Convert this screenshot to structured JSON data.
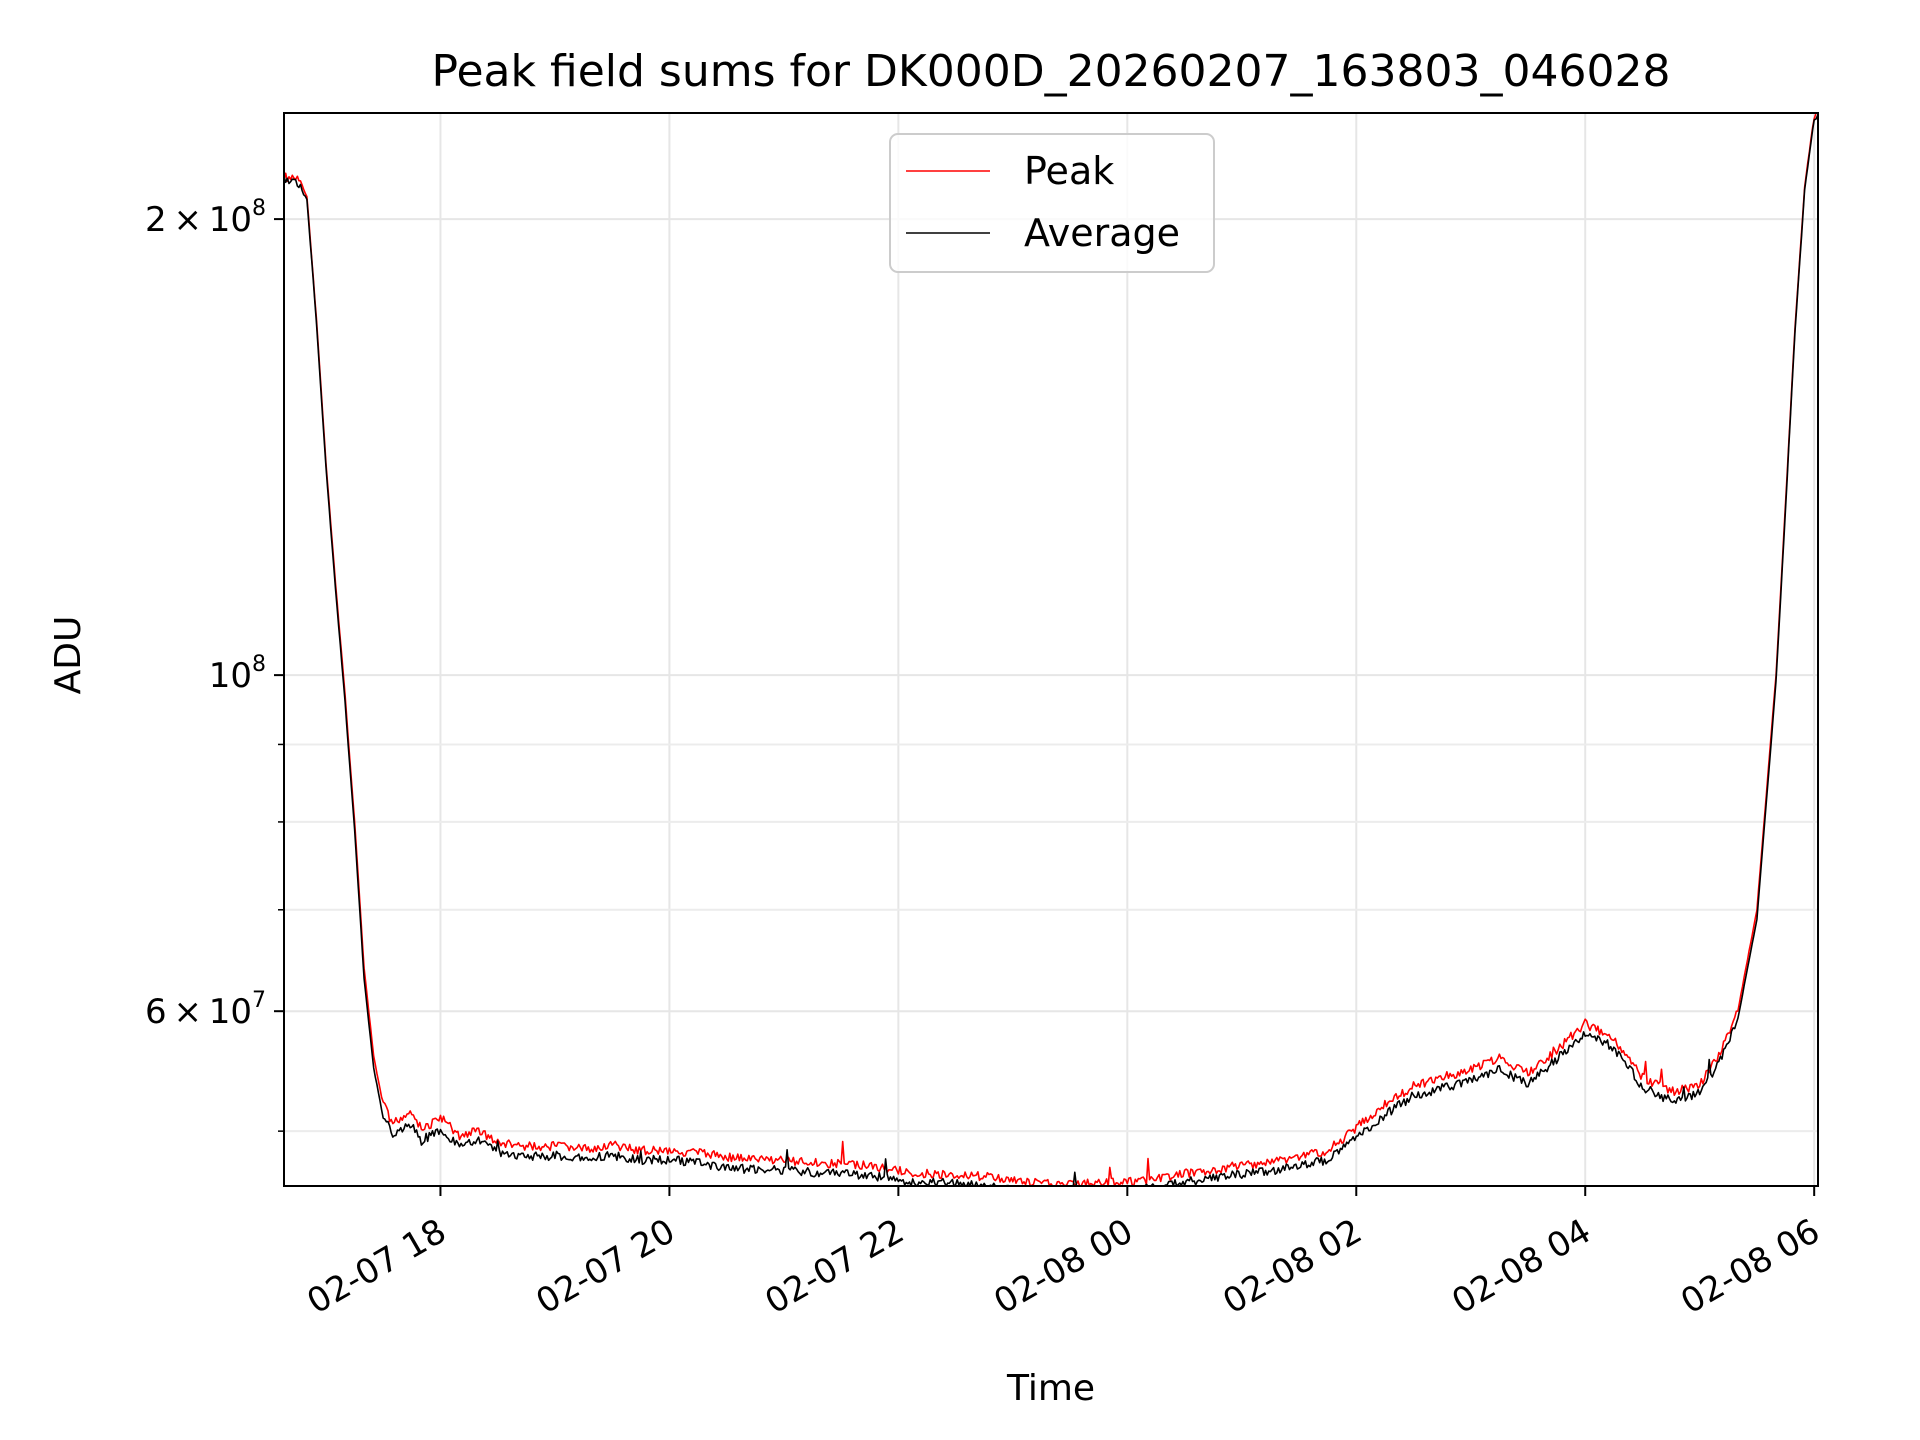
{
  "chart_data": {
    "type": "line",
    "title": "Peak field sums for DK000D_20260207_163803_046028",
    "xlabel": "Time",
    "ylabel": "ADU",
    "yscale": "log",
    "xlim": [
      "2026-02-07 16:38",
      "2026-02-08 06:02"
    ],
    "ylim": [
      46000000,
      235000000
    ],
    "grid": true,
    "legend": {
      "placement": "upper center"
    },
    "x_ticks": [
      {
        "value": "2026-02-07 18:00",
        "label": "02-07 18"
      },
      {
        "value": "2026-02-07 20:00",
        "label": "02-07 20"
      },
      {
        "value": "2026-02-07 22:00",
        "label": "02-07 22"
      },
      {
        "value": "2026-02-08 00:00",
        "label": "02-08 00"
      },
      {
        "value": "2026-02-08 02:00",
        "label": "02-08 02"
      },
      {
        "value": "2026-02-08 04:00",
        "label": "02-08 04"
      },
      {
        "value": "2026-02-08 06:00",
        "label": "02-08 06"
      }
    ],
    "y_major_ticks": [
      {
        "value": 200000000,
        "mant": "2",
        "base": "10",
        "exp": "8"
      },
      {
        "value": 100000000,
        "mant": "",
        "base": "10",
        "exp": "8"
      },
      {
        "value": 60000000,
        "mant": "6",
        "base": "10",
        "exp": "7"
      }
    ],
    "y_minor_ticks": [
      50000000,
      70000000,
      80000000,
      90000000,
      300000000
    ],
    "series": [
      {
        "name": "Peak",
        "color": "#ff0000",
        "x": [
          "2026-02-07 16:38",
          "2026-02-07 16:45",
          "2026-02-07 16:50",
          "2026-02-07 16:55",
          "2026-02-07 17:00",
          "2026-02-07 17:05",
          "2026-02-07 17:10",
          "2026-02-07 17:15",
          "2026-02-07 17:20",
          "2026-02-07 17:25",
          "2026-02-07 17:30",
          "2026-02-07 17:35",
          "2026-02-07 17:40",
          "2026-02-07 17:45",
          "2026-02-07 17:50",
          "2026-02-07 18:00",
          "2026-02-07 18:10",
          "2026-02-07 18:20",
          "2026-02-07 18:30",
          "2026-02-07 18:45",
          "2026-02-07 19:00",
          "2026-02-07 19:15",
          "2026-02-07 19:30",
          "2026-02-07 19:45",
          "2026-02-07 20:00",
          "2026-02-07 20:15",
          "2026-02-07 20:30",
          "2026-02-07 20:45",
          "2026-02-07 21:00",
          "2026-02-07 21:15",
          "2026-02-07 21:30",
          "2026-02-07 21:45",
          "2026-02-07 22:00",
          "2026-02-07 22:15",
          "2026-02-07 22:30",
          "2026-02-07 22:45",
          "2026-02-07 23:00",
          "2026-02-07 23:15",
          "2026-02-07 23:30",
          "2026-02-07 23:45",
          "2026-02-08 00:00",
          "2026-02-08 00:15",
          "2026-02-08 00:30",
          "2026-02-08 00:45",
          "2026-02-08 01:00",
          "2026-02-08 01:15",
          "2026-02-08 01:30",
          "2026-02-08 01:45",
          "2026-02-08 02:00",
          "2026-02-08 02:15",
          "2026-02-08 02:30",
          "2026-02-08 02:45",
          "2026-02-08 03:00",
          "2026-02-08 03:15",
          "2026-02-08 03:30",
          "2026-02-08 03:45",
          "2026-02-08 04:00",
          "2026-02-08 04:15",
          "2026-02-08 04:30",
          "2026-02-08 04:45",
          "2026-02-08 05:00",
          "2026-02-08 05:10",
          "2026-02-08 05:20",
          "2026-02-08 05:30",
          "2026-02-08 05:40",
          "2026-02-08 05:45",
          "2026-02-08 05:50",
          "2026-02-08 05:55",
          "2026-02-08 06:00",
          "2026-02-08 06:02"
        ],
        "y": [
          213000000,
          212000000,
          207000000,
          172000000,
          138000000,
          115000000,
          97000000,
          80000000,
          64000000,
          56000000,
          52000000,
          50500000,
          51000000,
          51500000,
          50000000,
          51000000,
          49500000,
          50000000,
          49000000,
          48800000,
          48800000,
          48600000,
          48900000,
          48500000,
          48500000,
          48300000,
          48000000,
          47800000,
          47800000,
          47600000,
          47500000,
          47400000,
          47000000,
          46800000,
          46800000,
          46600000,
          46300000,
          46100000,
          46000000,
          46200000,
          46200000,
          46400000,
          46800000,
          47100000,
          47400000,
          47600000,
          48000000,
          48500000,
          50200000,
          52000000,
          53500000,
          54200000,
          54800000,
          55800000,
          54500000,
          56500000,
          58800000,
          57500000,
          54200000,
          53000000,
          53600000,
          56000000,
          60000000,
          70000000,
          100000000,
          130000000,
          170000000,
          210000000,
          234000000,
          235000000
        ]
      },
      {
        "name": "Average",
        "color": "#000000",
        "x": [
          "2026-02-07 16:38",
          "2026-02-07 16:45",
          "2026-02-07 16:50",
          "2026-02-07 16:55",
          "2026-02-07 17:00",
          "2026-02-07 17:05",
          "2026-02-07 17:10",
          "2026-02-07 17:15",
          "2026-02-07 17:20",
          "2026-02-07 17:25",
          "2026-02-07 17:30",
          "2026-02-07 17:35",
          "2026-02-07 17:40",
          "2026-02-07 17:45",
          "2026-02-07 17:50",
          "2026-02-07 18:00",
          "2026-02-07 18:10",
          "2026-02-07 18:20",
          "2026-02-07 18:30",
          "2026-02-07 18:45",
          "2026-02-07 19:00",
          "2026-02-07 19:15",
          "2026-02-07 19:30",
          "2026-02-07 19:45",
          "2026-02-07 20:00",
          "2026-02-07 20:15",
          "2026-02-07 20:30",
          "2026-02-07 20:45",
          "2026-02-07 21:00",
          "2026-02-07 21:15",
          "2026-02-07 21:30",
          "2026-02-07 21:45",
          "2026-02-07 22:00",
          "2026-02-07 22:15",
          "2026-02-07 22:30",
          "2026-02-07 22:45",
          "2026-02-07 23:00",
          "2026-02-07 23:15",
          "2026-02-07 23:30",
          "2026-02-07 23:45",
          "2026-02-08 00:00",
          "2026-02-08 00:15",
          "2026-02-08 00:30",
          "2026-02-08 00:45",
          "2026-02-08 01:00",
          "2026-02-08 01:15",
          "2026-02-08 01:30",
          "2026-02-08 01:45",
          "2026-02-08 02:00",
          "2026-02-08 02:15",
          "2026-02-08 02:30",
          "2026-02-08 02:45",
          "2026-02-08 03:00",
          "2026-02-08 03:15",
          "2026-02-08 03:30",
          "2026-02-08 03:45",
          "2026-02-08 04:00",
          "2026-02-08 04:15",
          "2026-02-08 04:30",
          "2026-02-08 04:45",
          "2026-02-08 05:00",
          "2026-02-08 05:10",
          "2026-02-08 05:20",
          "2026-02-08 05:30",
          "2026-02-08 05:40",
          "2026-02-08 05:45",
          "2026-02-08 05:50",
          "2026-02-08 05:55",
          "2026-02-08 06:00",
          "2026-02-08 06:02"
        ],
        "y": [
          212000000,
          211000000,
          206000000,
          171000000,
          137000000,
          114000000,
          96000000,
          79000000,
          63000000,
          55000000,
          51000000,
          49700000,
          50000000,
          50500000,
          49200000,
          50000000,
          48800000,
          49200000,
          48300000,
          48000000,
          48100000,
          47900000,
          48100000,
          47800000,
          47800000,
          47600000,
          47200000,
          47100000,
          47100000,
          46900000,
          46800000,
          46700000,
          46300000,
          46200000,
          46100000,
          45900000,
          45700000,
          45500000,
          45400000,
          45600000,
          45600000,
          45800000,
          46200000,
          46500000,
          46800000,
          47000000,
          47400000,
          47800000,
          49400000,
          51200000,
          52700000,
          53300000,
          53900000,
          54900000,
          53600000,
          55700000,
          58000000,
          56700000,
          53400000,
          52300000,
          52900000,
          55300000,
          59300000,
          69000000,
          99000000,
          129000000,
          169000000,
          209000000,
          233000000,
          234500000
        ]
      }
    ]
  }
}
